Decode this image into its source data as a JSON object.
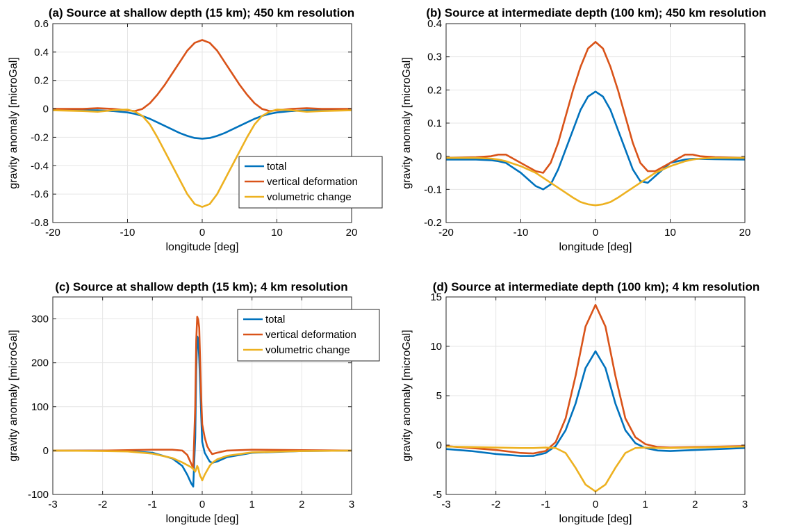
{
  "chart_data": [
    {
      "type": "line",
      "title": "(a) Source at shallow depth (15 km); 450 km resolution",
      "xlabel": "longitude [deg]",
      "ylabel": "gravity anomaly [microGal]",
      "xlim": [
        -20,
        20
      ],
      "ylim": [
        -0.8,
        0.6
      ],
      "xticks": [
        -20,
        -10,
        0,
        10,
        20
      ],
      "yticks": [
        -0.8,
        -0.6,
        -0.4,
        -0.2,
        0,
        0.2,
        0.4,
        0.6
      ],
      "grid": true,
      "legend": {
        "placement": "lower-right",
        "entries": [
          "total",
          "vertical deformation",
          "volumetric change"
        ]
      },
      "x": [
        -20,
        -16,
        -14,
        -12,
        -10,
        -9,
        -8,
        -7,
        -6,
        -5,
        -4,
        -3,
        -2,
        -1,
        0,
        1,
        2,
        3,
        4,
        5,
        6,
        7,
        8,
        9,
        10,
        12,
        14,
        16,
        20
      ],
      "series": [
        {
          "name": "total",
          "color": "#0072BD",
          "values": [
            -0.01,
            -0.01,
            -0.01,
            -0.015,
            -0.025,
            -0.035,
            -0.05,
            -0.07,
            -0.095,
            -0.12,
            -0.145,
            -0.17,
            -0.19,
            -0.205,
            -0.21,
            -0.205,
            -0.19,
            -0.17,
            -0.145,
            -0.12,
            -0.095,
            -0.07,
            -0.05,
            -0.035,
            -0.025,
            -0.015,
            -0.01,
            -0.01,
            -0.01
          ]
        },
        {
          "name": "vertical deformation",
          "color": "#D95319",
          "values": [
            0,
            0,
            0.005,
            0.0,
            -0.01,
            -0.015,
            0.0,
            0.04,
            0.1,
            0.17,
            0.25,
            0.33,
            0.41,
            0.465,
            0.485,
            0.465,
            0.41,
            0.33,
            0.25,
            0.17,
            0.1,
            0.04,
            0.0,
            -0.015,
            -0.01,
            0.0,
            0.005,
            0,
            0
          ]
        },
        {
          "name": "volumetric change",
          "color": "#EDB120",
          "values": [
            -0.01,
            -0.015,
            -0.02,
            -0.01,
            -0.005,
            -0.02,
            -0.05,
            -0.11,
            -0.2,
            -0.3,
            -0.4,
            -0.5,
            -0.6,
            -0.67,
            -0.69,
            -0.67,
            -0.6,
            -0.5,
            -0.4,
            -0.3,
            -0.2,
            -0.11,
            -0.05,
            -0.02,
            -0.005,
            -0.01,
            -0.02,
            -0.015,
            -0.01
          ]
        }
      ]
    },
    {
      "type": "line",
      "title": "(b) Source at intermediate depth (100 km); 450 km resolution",
      "xlabel": "longitude [deg]",
      "ylabel": "gravity anomaly [microGal]",
      "xlim": [
        -20,
        20
      ],
      "ylim": [
        -0.2,
        0.4
      ],
      "xticks": [
        -20,
        -10,
        0,
        10,
        20
      ],
      "yticks": [
        -0.2,
        -0.1,
        0,
        0.1,
        0.2,
        0.3,
        0.4
      ],
      "grid": true,
      "x": [
        -20,
        -16,
        -14,
        -13,
        -12,
        -10,
        -8,
        -7,
        -6,
        -5,
        -4,
        -3,
        -2,
        -1,
        0,
        1,
        2,
        3,
        4,
        5,
        6,
        7,
        8,
        10,
        12,
        13,
        14,
        16,
        20
      ],
      "series": [
        {
          "name": "total",
          "color": "#0072BD",
          "values": [
            -0.01,
            -0.01,
            -0.012,
            -0.015,
            -0.02,
            -0.05,
            -0.09,
            -0.1,
            -0.085,
            -0.04,
            0.02,
            0.08,
            0.14,
            0.18,
            0.195,
            0.18,
            0.14,
            0.08,
            0.02,
            -0.04,
            -0.075,
            -0.08,
            -0.06,
            -0.02,
            -0.01,
            -0.008,
            -0.008,
            -0.009,
            -0.01
          ]
        },
        {
          "name": "vertical deformation",
          "color": "#D95319",
          "values": [
            -0.005,
            -0.003,
            0.0,
            0.005,
            0.005,
            -0.02,
            -0.045,
            -0.05,
            -0.02,
            0.04,
            0.12,
            0.2,
            0.27,
            0.325,
            0.345,
            0.325,
            0.27,
            0.2,
            0.12,
            0.04,
            -0.02,
            -0.045,
            -0.045,
            -0.02,
            0.005,
            0.005,
            0.0,
            -0.003,
            -0.005
          ]
        },
        {
          "name": "volumetric change",
          "color": "#EDB120",
          "values": [
            -0.005,
            -0.005,
            -0.007,
            -0.01,
            -0.015,
            -0.03,
            -0.05,
            -0.065,
            -0.08,
            -0.095,
            -0.11,
            -0.125,
            -0.138,
            -0.145,
            -0.148,
            -0.145,
            -0.138,
            -0.125,
            -0.11,
            -0.095,
            -0.08,
            -0.065,
            -0.05,
            -0.03,
            -0.015,
            -0.01,
            -0.007,
            -0.005,
            -0.005
          ]
        }
      ]
    },
    {
      "type": "line",
      "title": "(c) Source at shallow depth (15 km); 4 km resolution",
      "xlabel": "longitude [deg]",
      "ylabel": "gravity anomaly [microGal]",
      "xlim": [
        -3,
        3
      ],
      "ylim": [
        -100,
        350
      ],
      "xticks": [
        -3,
        -2,
        -1,
        0,
        1,
        2,
        3
      ],
      "yticks": [
        -100,
        0,
        100,
        200,
        300
      ],
      "grid": true,
      "legend": {
        "placement": "top-right",
        "entries": [
          "total",
          "vertical deformation",
          "volumetric change"
        ]
      },
      "x": [
        -3,
        -2,
        -1.5,
        -1,
        -0.6,
        -0.4,
        -0.3,
        -0.22,
        -0.18,
        -0.14,
        -0.12,
        -0.1,
        -0.08,
        -0.06,
        -0.04,
        -0.02,
        0,
        0.05,
        0.1,
        0.15,
        0.2,
        0.3,
        0.5,
        1,
        2,
        3
      ],
      "series": [
        {
          "name": "total",
          "color": "#0072BD",
          "values": [
            0,
            0,
            -1,
            -5,
            -18,
            -35,
            -55,
            -75,
            -82,
            30,
            180,
            260,
            255,
            210,
            150,
            80,
            20,
            -5,
            -15,
            -25,
            -28,
            -25,
            -15,
            -5,
            -1,
            0
          ]
        },
        {
          "name": "vertical deformation",
          "color": "#D95319",
          "values": [
            0,
            0,
            1,
            2,
            2,
            0,
            -10,
            -30,
            -40,
            100,
            250,
            305,
            298,
            280,
            200,
            120,
            60,
            30,
            10,
            0,
            -8,
            -5,
            0,
            2,
            1,
            0
          ]
        },
        {
          "name": "volumetric change",
          "color": "#EDB120",
          "values": [
            0,
            -1,
            -2,
            -7,
            -17,
            -27,
            -33,
            -38,
            -42,
            -48,
            -42,
            -35,
            -40,
            -50,
            -58,
            -62,
            -68,
            -55,
            -45,
            -35,
            -28,
            -20,
            -12,
            -4,
            -1,
            0
          ]
        }
      ]
    },
    {
      "type": "line",
      "title": "(d) Source at intermediate depth (100 km); 4 km resolution",
      "xlabel": "longitude [deg]",
      "ylabel": "gravity anomaly [microGal]",
      "xlim": [
        -3,
        3
      ],
      "ylim": [
        -5,
        15
      ],
      "xticks": [
        -3,
        -2,
        -1,
        0,
        1,
        2,
        3
      ],
      "yticks": [
        -5,
        0,
        5,
        10,
        15
      ],
      "grid": true,
      "x": [
        -3,
        -2.5,
        -2,
        -1.5,
        -1.25,
        -1,
        -0.8,
        -0.6,
        -0.4,
        -0.2,
        0,
        0.2,
        0.4,
        0.6,
        0.8,
        1,
        1.25,
        1.5,
        2,
        2.5,
        3
      ],
      "series": [
        {
          "name": "total",
          "color": "#0072BD",
          "values": [
            -0.4,
            -0.6,
            -0.9,
            -1.1,
            -1.1,
            -0.8,
            -0.1,
            1.5,
            4.2,
            7.8,
            9.5,
            7.8,
            4.2,
            1.5,
            0.2,
            -0.3,
            -0.55,
            -0.6,
            -0.5,
            -0.4,
            -0.3
          ]
        },
        {
          "name": "vertical deformation",
          "color": "#D95319",
          "values": [
            -0.1,
            -0.3,
            -0.5,
            -0.8,
            -0.85,
            -0.6,
            0.3,
            2.7,
            7.0,
            12.0,
            14.2,
            12.0,
            7.0,
            2.7,
            0.8,
            0.1,
            -0.2,
            -0.25,
            -0.2,
            -0.15,
            -0.1
          ]
        },
        {
          "name": "volumetric change",
          "color": "#EDB120",
          "values": [
            -0.15,
            -0.2,
            -0.25,
            -0.3,
            -0.3,
            -0.25,
            -0.3,
            -0.8,
            -2.3,
            -4.0,
            -4.7,
            -4.0,
            -2.3,
            -0.8,
            -0.3,
            -0.25,
            -0.3,
            -0.3,
            -0.25,
            -0.2,
            -0.15
          ]
        }
      ]
    }
  ]
}
